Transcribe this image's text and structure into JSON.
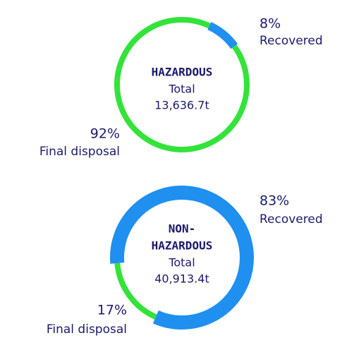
{
  "chart_data": [
    {
      "type": "donut",
      "title": [
        "HAZARDOUS"
      ],
      "subtitle": "Total",
      "total": "13,636.7t",
      "categories": [
        "Recovered",
        "Final disposal"
      ],
      "values": [
        8,
        92
      ],
      "value_labels": [
        "8%",
        "92%"
      ],
      "colors": [
        "#1f8ff0",
        "#33e33a"
      ]
    },
    {
      "type": "donut",
      "title": [
        "NON-",
        "HAZARDOUS"
      ],
      "subtitle": "Total",
      "total": "40,913.4t",
      "categories": [
        "Recovered",
        "Final disposal"
      ],
      "values": [
        83,
        17
      ],
      "value_labels": [
        "83%",
        "17%"
      ],
      "colors": [
        "#1f8ff0",
        "#33e33a"
      ]
    }
  ]
}
